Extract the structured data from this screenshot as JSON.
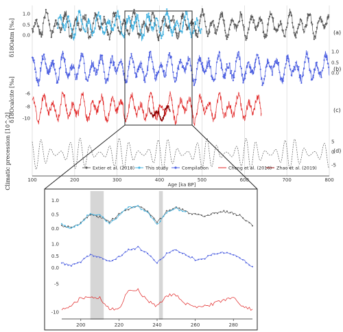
{
  "colors": {
    "extier": "#555555",
    "this_study": "#3fb0df",
    "compilation": "#4a5de0",
    "cheng": "#e02020",
    "zhao": "#8b0000",
    "precession": "#555555",
    "grid": "#cfcfcf",
    "shade": "#d6d6d6"
  },
  "chart_data": [
    {
      "type": "line",
      "xlabel": "Age [ka BP]",
      "xlim": [
        100,
        800
      ],
      "xticks": [
        "100",
        "200",
        "300",
        "400",
        "500",
        "600",
        "700",
        "800"
      ],
      "panels": [
        {
          "label": "(a)",
          "ylabel": "δ18Oatm [‰]",
          "yticks": [
            "1.0",
            "0.5",
            "0.0"
          ],
          "ylim": [
            -0.2,
            1.3
          ]
        },
        {
          "label": "(b)",
          "ylabel": "",
          "yticks": [
            "1.0",
            "0.5",
            "0.0"
          ],
          "ylim": [
            -0.2,
            1.3
          ]
        },
        {
          "label": "(c)",
          "ylabel": "δ18Ocalcite [‰]",
          "yticks": [
            "-6",
            "-8",
            "-10"
          ],
          "ylim": [
            -11,
            -5.5
          ]
        },
        {
          "label": "(d)",
          "ylabel": "Climatic precession [10^-2]",
          "yticks": [
            "5",
            "0",
            "-5"
          ],
          "ylim": [
            -6,
            6
          ]
        }
      ],
      "series": [
        {
          "name": "Extier et al. (2018)",
          "panel": "a",
          "x_range": [
            100,
            800
          ],
          "level": 0.45,
          "amplitude": 0.35
        },
        {
          "name": "This study",
          "panel": "a",
          "x_range": [
            160,
            500
          ],
          "level": 0.6,
          "amplitude": 0.4
        },
        {
          "name": "Compilation",
          "panel": "b",
          "x_range": [
            100,
            800
          ],
          "level": 0.45,
          "amplitude": 0.4
        },
        {
          "name": "Cheng et al. (2016)",
          "panel": "c",
          "x_range": [
            100,
            640
          ],
          "level": -8.3,
          "amplitude": 1.6
        },
        {
          "name": "Zhao et al. (2019)",
          "panel": "c",
          "x_range": [
            375,
            425
          ],
          "level": -9.5,
          "amplitude": 1.0
        },
        {
          "name": "",
          "panel": "d",
          "x_range": [
            100,
            800
          ],
          "level": 0,
          "amplitude": 4.5
        }
      ],
      "zoom_box": [
        190,
        280
      ]
    },
    {
      "type": "line",
      "xlim": [
        190,
        290
      ],
      "xticks": [
        "200",
        "220",
        "240",
        "260",
        "280"
      ],
      "panels": [
        {
          "yticks": [
            "1.0",
            "0.5",
            "0.0"
          ],
          "ylim": [
            -0.3,
            1.2
          ]
        },
        {
          "yticks": [
            "1.0",
            "0.5",
            "0.0"
          ],
          "ylim": [
            -0.3,
            1.2
          ]
        },
        {
          "yticks": [
            "-5",
            "-10"
          ],
          "ylim": [
            -11,
            -4
          ]
        }
      ],
      "shaded_intervals": [
        [
          205,
          212
        ],
        [
          241,
          243
        ]
      ],
      "series": [
        {
          "name": "Extier et al. (2018)",
          "panel": 1,
          "x": [
            190,
            195,
            200,
            205,
            210,
            215,
            220,
            225,
            230,
            235,
            240,
            245,
            250,
            255,
            260,
            265,
            270,
            275,
            280,
            285,
            290
          ],
          "y": [
            0.1,
            0.05,
            0.2,
            0.5,
            0.4,
            0.25,
            0.5,
            0.7,
            0.8,
            0.6,
            0.2,
            0.6,
            0.75,
            0.6,
            0.5,
            0.4,
            0.55,
            0.6,
            0.55,
            0.4,
            0.1
          ]
        },
        {
          "name": "This study",
          "panel": 1,
          "x": [
            190,
            195,
            200,
            205,
            210,
            215,
            220,
            225,
            230,
            235,
            240,
            245,
            250,
            255
          ],
          "y": [
            0.15,
            0.0,
            0.2,
            0.55,
            0.45,
            0.2,
            0.45,
            0.75,
            0.8,
            0.55,
            0.15,
            0.55,
            0.7,
            0.6
          ]
        },
        {
          "name": "Compilation",
          "panel": 2,
          "x": [
            190,
            195,
            200,
            205,
            210,
            215,
            220,
            225,
            230,
            235,
            240,
            245,
            250,
            255,
            260,
            265,
            270,
            275,
            280,
            285,
            290
          ],
          "y": [
            0.2,
            0.1,
            0.25,
            0.55,
            0.45,
            0.25,
            0.45,
            0.75,
            0.85,
            0.6,
            0.2,
            0.6,
            0.75,
            0.55,
            0.35,
            0.4,
            0.6,
            0.65,
            0.55,
            0.35,
            0.05
          ]
        },
        {
          "name": "Cheng et al. (2016)",
          "panel": 3,
          "x": [
            190,
            195,
            200,
            205,
            210,
            215,
            220,
            225,
            230,
            235,
            240,
            245,
            250,
            255,
            260,
            265,
            270,
            275,
            280,
            285,
            290
          ],
          "y": [
            -9.5,
            -9,
            -7.5,
            -7.5,
            -7.5,
            -9.5,
            -9.5,
            -6,
            -6,
            -8,
            -9,
            -7,
            -7,
            -8.5,
            -9,
            -9,
            -8.5,
            -8,
            -7.5,
            -9,
            -9.5
          ]
        }
      ]
    }
  ],
  "legend": [
    {
      "name": "Extier et al. (2018)",
      "swatch": "extier"
    },
    {
      "name": "This study",
      "swatch": "this_study"
    },
    {
      "name": "Compilation",
      "swatch": "compilation"
    },
    {
      "name": "Cheng et al. (2016)",
      "swatch": "cheng"
    },
    {
      "name": "Zhao et al. (2019)",
      "swatch": "zhao"
    }
  ]
}
